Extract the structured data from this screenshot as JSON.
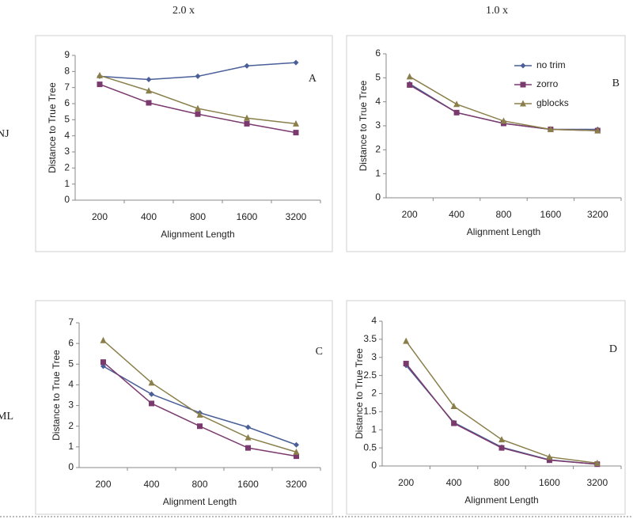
{
  "column_labels": [
    "2.0 x",
    "1.0 x"
  ],
  "row_labels": [
    "NJ",
    "ML"
  ],
  "chart_data": [
    {
      "type": "line",
      "panel_label": "A",
      "xlabel": "Alignment Length",
      "ylabel": "Distance to True Tree",
      "categories": [
        "200",
        "400",
        "800",
        "1600",
        "3200"
      ],
      "series": [
        {
          "color": "#4a5f97",
          "marker": "diamond",
          "values": [
            7.7,
            7.5,
            7.7,
            8.35,
            8.55
          ]
        },
        {
          "color": "#7b3a6e",
          "marker": "square",
          "values": [
            7.2,
            6.05,
            5.35,
            4.75,
            4.2
          ]
        },
        {
          "color": "#8a7f4a",
          "marker": "triangle",
          "values": [
            7.75,
            6.8,
            5.7,
            5.1,
            4.75
          ]
        }
      ],
      "ylim": [
        0,
        9
      ],
      "yticks": [
        0,
        1,
        2,
        3,
        4,
        5,
        6,
        7,
        8,
        9
      ],
      "legend": false
    },
    {
      "type": "line",
      "panel_label": "B",
      "xlabel": "Alignment Length",
      "ylabel": "Distance to True Tree",
      "categories": [
        "200",
        "400",
        "800",
        "1600",
        "3200"
      ],
      "series": [
        {
          "name": "no trim",
          "color": "#4a5f97",
          "marker": "diamond",
          "values": [
            4.75,
            3.55,
            3.1,
            2.85,
            2.85
          ]
        },
        {
          "name": "zorro",
          "color": "#7b3a6e",
          "marker": "square",
          "values": [
            4.7,
            3.55,
            3.1,
            2.85,
            2.8
          ]
        },
        {
          "name": "gblocks",
          "color": "#8a7f4a",
          "marker": "triangle",
          "values": [
            5.05,
            3.9,
            3.2,
            2.85,
            2.8
          ]
        }
      ],
      "ylim": [
        0,
        6
      ],
      "yticks": [
        0,
        1,
        2,
        3,
        4,
        5,
        6
      ],
      "legend": true
    },
    {
      "type": "line",
      "panel_label": "C",
      "xlabel": "Alignment Length",
      "ylabel": "Distance to True Tree",
      "categories": [
        "200",
        "400",
        "800",
        "1600",
        "3200"
      ],
      "series": [
        {
          "color": "#4a5f97",
          "marker": "diamond",
          "values": [
            4.9,
            3.55,
            2.65,
            1.95,
            1.1
          ]
        },
        {
          "color": "#7b3a6e",
          "marker": "square",
          "values": [
            5.1,
            3.1,
            2.0,
            0.95,
            0.55
          ]
        },
        {
          "color": "#8a7f4a",
          "marker": "triangle",
          "values": [
            6.15,
            4.1,
            2.55,
            1.45,
            0.75
          ]
        }
      ],
      "ylim": [
        0,
        7
      ],
      "yticks": [
        0,
        1,
        2,
        3,
        4,
        5,
        6,
        7
      ],
      "legend": false
    },
    {
      "type": "line",
      "panel_label": "D",
      "xlabel": "Alignment Length",
      "ylabel": "Distance to True Tree",
      "categories": [
        "200",
        "400",
        "800",
        "1600",
        "3200"
      ],
      "series": [
        {
          "color": "#4a5f97",
          "marker": "diamond",
          "values": [
            2.78,
            1.2,
            0.52,
            0.17,
            0.05
          ]
        },
        {
          "color": "#7b3a6e",
          "marker": "square",
          "values": [
            2.83,
            1.18,
            0.5,
            0.16,
            0.05
          ]
        },
        {
          "color": "#8a7f4a",
          "marker": "triangle",
          "values": [
            3.45,
            1.65,
            0.73,
            0.25,
            0.08
          ]
        }
      ],
      "ylim": [
        0,
        4
      ],
      "yticks": [
        0,
        0.5,
        1,
        1.5,
        2,
        2.5,
        3,
        3.5,
        4
      ],
      "legend": false
    }
  ]
}
